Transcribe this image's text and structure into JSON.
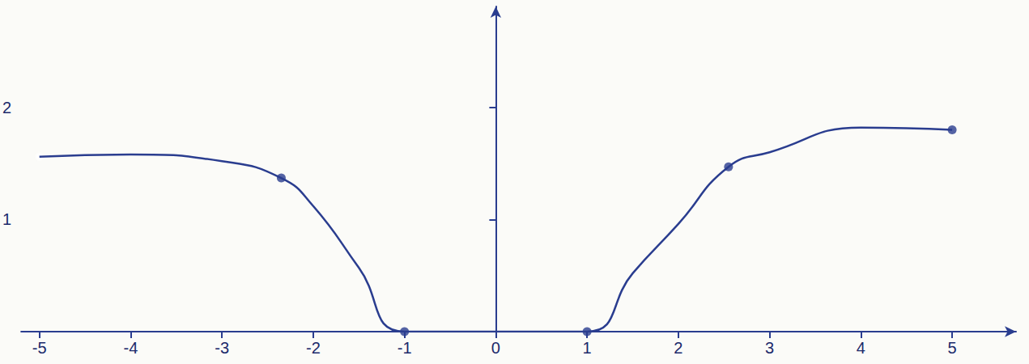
{
  "chart_data": {
    "type": "line",
    "xlim": [
      -5.2,
      5.7
    ],
    "xticks": [
      -5,
      -4,
      -3,
      -2,
      -1,
      0,
      1,
      2,
      3,
      4,
      5
    ],
    "ylim": [
      0,
      2.9
    ],
    "yticks": [
      1,
      2
    ],
    "grid": false,
    "series": [
      {
        "type": "line",
        "color": "#2a3d8f",
        "marker": "none",
        "line_style": "solid",
        "x": [
          -5,
          -4,
          -3,
          -2.35,
          -2,
          -1.5,
          -1,
          1,
          1.5,
          2,
          2.55,
          3,
          4,
          5
        ],
        "values": [
          1.56,
          1.58,
          1.52,
          1.37,
          1.12,
          0.57,
          0,
          0,
          0.52,
          0.96,
          1.47,
          1.6,
          1.82,
          1.8
        ]
      },
      {
        "type": "scatter",
        "color": "#2a3d8f",
        "marker": "circle",
        "x": [
          -2.35,
          -1,
          1,
          2.55,
          5
        ],
        "values": [
          1.37,
          0,
          0,
          1.47,
          1.8
        ]
      },
      {
        "type": "scatter",
        "color": "#2a3d8f",
        "marker": "emptyCircle",
        "x": [
          -5
        ],
        "values": [
          1.56
        ]
      }
    ]
  }
}
